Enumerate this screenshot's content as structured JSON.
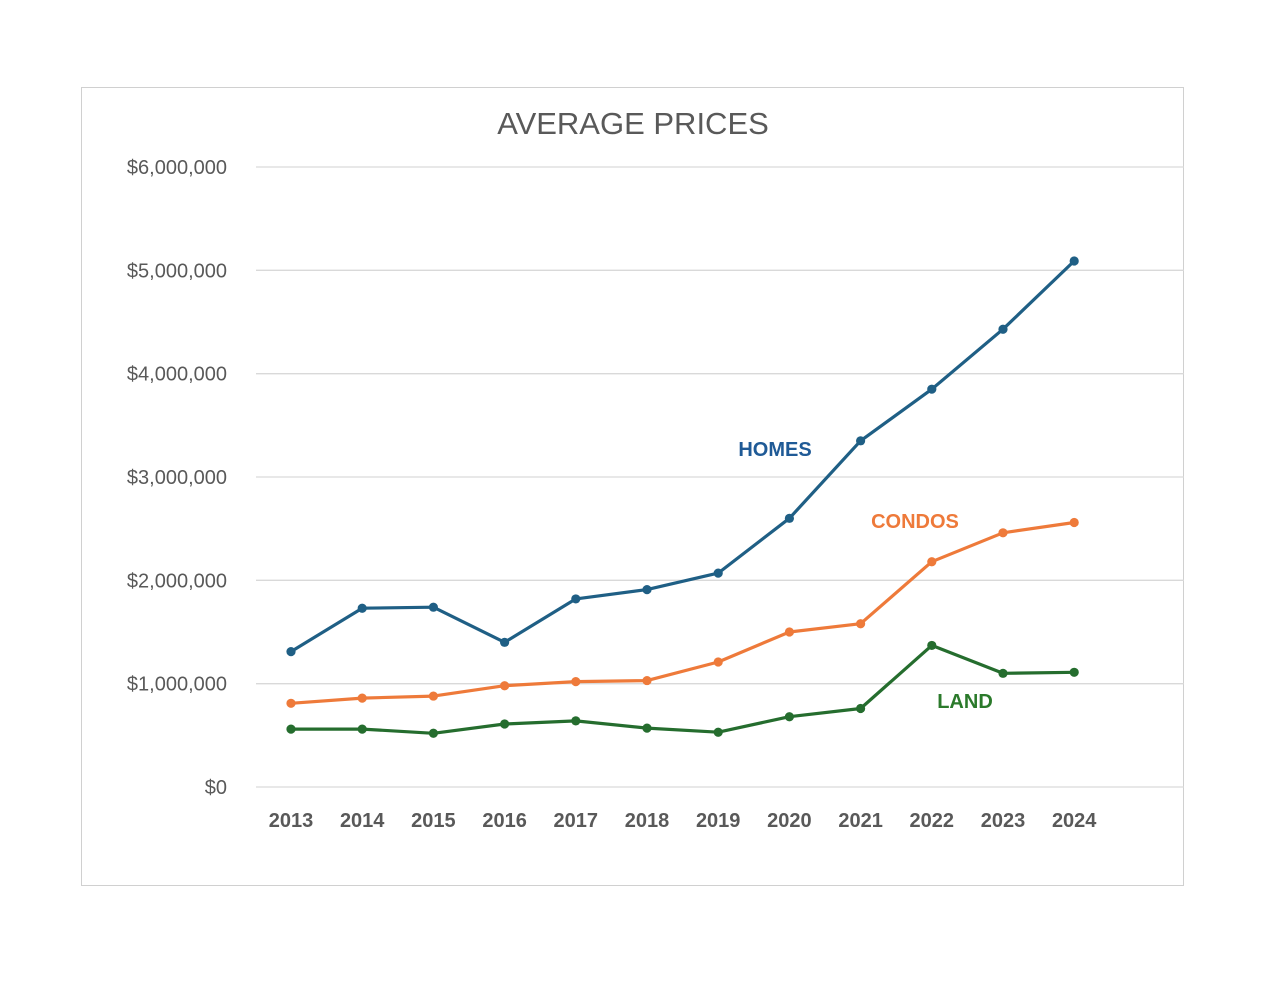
{
  "chart_data": {
    "type": "line",
    "title": "AVERAGE PRICES",
    "xlabel": "",
    "ylabel": "",
    "ylim": [
      0,
      6000000
    ],
    "yticks": [
      0,
      1000000,
      2000000,
      3000000,
      4000000,
      5000000,
      6000000
    ],
    "ytick_labels": [
      "$0",
      "$1,000,000",
      "$2,000,000",
      "$3,000,000",
      "$4,000,000",
      "$5,000,000",
      "$6,000,000"
    ],
    "grid": true,
    "legend": "none (inline series labels)",
    "categories": [
      "2013",
      "2014",
      "2015",
      "2016",
      "2017",
      "2018",
      "2019",
      "2020",
      "2021",
      "2022",
      "2023",
      "2024"
    ],
    "series": [
      {
        "name": "HOMES",
        "color": "#1f5f85",
        "label_color": "#1f5a96",
        "values": [
          1310000,
          1730000,
          1740000,
          1400000,
          1820000,
          1910000,
          2070000,
          2600000,
          3350000,
          3850000,
          4430000,
          5090000
        ]
      },
      {
        "name": "CONDOS",
        "color": "#ee7a3a",
        "label_color": "#ee7a3a",
        "values": [
          810000,
          860000,
          880000,
          980000,
          1020000,
          1030000,
          1210000,
          1500000,
          1580000,
          2180000,
          2460000,
          2560000
        ]
      },
      {
        "name": "LAND",
        "color": "#256d2e",
        "label_color": "#2b7a2b",
        "values": [
          560000,
          560000,
          520000,
          610000,
          640000,
          570000,
          530000,
          680000,
          760000,
          1370000,
          1100000,
          1110000
        ]
      }
    ]
  }
}
